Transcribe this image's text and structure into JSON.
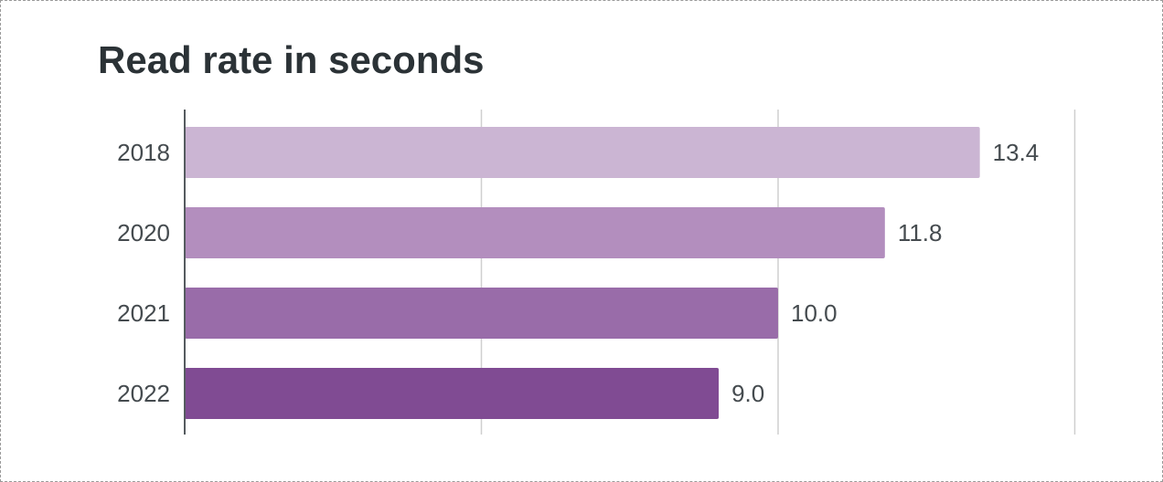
{
  "chart_data": {
    "type": "bar",
    "orientation": "horizontal",
    "title": "Read rate in seconds",
    "categories": [
      "2018",
      "2020",
      "2021",
      "2022"
    ],
    "values": [
      13.4,
      11.8,
      10.0,
      9.0
    ],
    "value_labels": [
      "13.4",
      "11.8",
      "10.0",
      "9.0"
    ],
    "xlim": [
      0,
      15
    ],
    "x_gridlines": [
      5,
      10,
      15
    ],
    "grid": true,
    "legend": "none",
    "colors": [
      "#cbb5d3",
      "#b38ebe",
      "#996ca9",
      "#804b93"
    ]
  }
}
